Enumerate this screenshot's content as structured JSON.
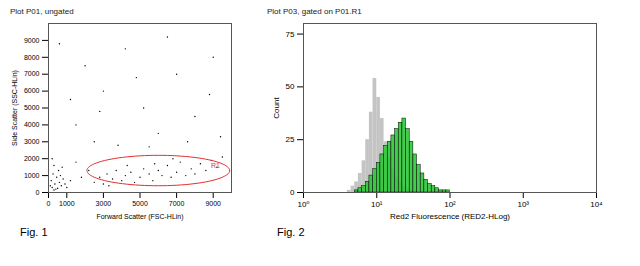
{
  "chart_data": [
    {
      "type": "scatter",
      "title": "Plot P01, ungated",
      "caption": "Fig. 1",
      "xlabel": "Forward Scatter (FSC-HLin)",
      "ylabel": "Side Scatter (SSC-HLin)",
      "xlim": [
        0,
        10000
      ],
      "ylim": [
        0,
        10000
      ],
      "xticks": [
        0,
        1000,
        3000,
        5000,
        7000,
        9000
      ],
      "yticks": [
        0,
        1000,
        2000,
        3000,
        4000,
        5000,
        6000,
        7000,
        8000,
        9000
      ],
      "color": "#000000",
      "x": [
        200,
        350,
        500,
        150,
        600,
        300,
        450,
        700,
        250,
        800,
        100,
        550,
        400,
        650,
        900,
        300,
        1000,
        750,
        200,
        1200,
        2500,
        2800,
        3000,
        3200,
        3500,
        3700,
        4000,
        4200,
        4500,
        4700,
        5000,
        5200,
        5500,
        5700,
        6000,
        6200,
        6500,
        6700,
        7000,
        7200,
        7500,
        7800,
        8000,
        8300,
        8600,
        8900,
        9200,
        9500,
        4300,
        5800,
        6800,
        3300,
        2200,
        1800,
        1500,
        1500,
        2500,
        3000,
        4200,
        5200,
        6000,
        7000,
        8000,
        9000,
        2000,
        3800,
        5500,
        7600,
        8800,
        1200,
        600,
        4800,
        6500,
        9400,
        2800
      ],
      "values": [
        300,
        500,
        250,
        700,
        600,
        150,
        900,
        400,
        1100,
        800,
        400,
        1300,
        200,
        1000,
        500,
        1600,
        300,
        1500,
        2000,
        700,
        600,
        900,
        500,
        1100,
        800,
        1300,
        700,
        1000,
        1200,
        600,
        900,
        1400,
        1100,
        700,
        1300,
        1000,
        1600,
        900,
        1200,
        1800,
        1000,
        1400,
        1100,
        1700,
        1300,
        1900,
        1500,
        2100,
        1600,
        1700,
        2000,
        400,
        1300,
        900,
        1800,
        4000,
        3000,
        6000,
        8500,
        5000,
        3500,
        7000,
        4500,
        8000,
        7500,
        2800,
        2700,
        3000,
        5800,
        5500,
        8800,
        6800,
        9200,
        3300,
        4800
      ],
      "gate": {
        "label": "R1",
        "color": "#e03030",
        "center": [
          6000,
          1300
        ],
        "radii": [
          3900,
          900
        ]
      }
    },
    {
      "type": "histogram",
      "title": "Plot P03, gated on P01.R1",
      "caption": "Fig. 2",
      "xlabel": "Red2 Fluorescence (RED2-HLog)",
      "ylabel": "Count",
      "log": "x",
      "xlim": [
        1,
        10000
      ],
      "ylim": [
        0,
        80
      ],
      "xticks": [
        {
          "value": 1,
          "label": "10⁰"
        },
        {
          "value": 10,
          "label": "10¹"
        },
        {
          "value": 100,
          "label": "10²"
        },
        {
          "value": 1000,
          "label": "10³"
        },
        {
          "value": 10000,
          "label": "10⁴"
        }
      ],
      "yticks": [
        0,
        25,
        50,
        75
      ],
      "bins": [
        3.98,
        4.47,
        5.01,
        5.62,
        6.31,
        7.08,
        7.94,
        8.91,
        10,
        11.22,
        12.59,
        14.13,
        15.85,
        17.78,
        19.95,
        22.39,
        25.12,
        28.18,
        31.62,
        35.48,
        39.81,
        44.67,
        50.12,
        56.23,
        63.1,
        70.79,
        79.43,
        89.13,
        100,
        112.2,
        125.89
      ],
      "series": [
        {
          "color": "#c4c4c4",
          "values": [
            1,
            3,
            5,
            9,
            15,
            25,
            38,
            54,
            45,
            35,
            24,
            16,
            11,
            7,
            5,
            3,
            2,
            1,
            1,
            0,
            0,
            0,
            0,
            0,
            0,
            0,
            0,
            0,
            0,
            0
          ]
        },
        {
          "color": "#2fc83a",
          "values": [
            0,
            0,
            1,
            2,
            3,
            5,
            8,
            11,
            14,
            18,
            22,
            24,
            27,
            30,
            33,
            35,
            30,
            24,
            18,
            13,
            9,
            6,
            4,
            3,
            2,
            1,
            1,
            1,
            0,
            0
          ]
        }
      ]
    }
  ]
}
